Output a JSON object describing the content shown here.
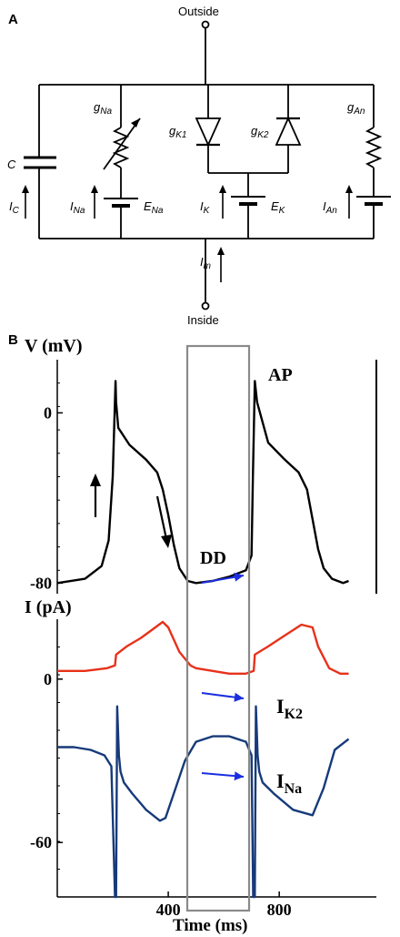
{
  "panel_a": {
    "label": "A",
    "outside_label": "Outside",
    "inside_label": "Inside",
    "capacitor": {
      "name": "C",
      "current": "I",
      "current_sub": "C"
    },
    "sodium": {
      "conductance": "g",
      "conductance_sub": "Na",
      "current": "I",
      "current_sub": "Na",
      "reversal": "E",
      "reversal_sub": "Na"
    },
    "potassium": {
      "g1": "g",
      "g1_sub": "K1",
      "g2": "g",
      "g2_sub": "K2",
      "current": "I",
      "current_sub": "K",
      "reversal": "E",
      "reversal_sub": "K"
    },
    "anion": {
      "conductance": "g",
      "conductance_sub": "An",
      "current": "I",
      "current_sub": "An"
    },
    "membrane": {
      "current": "I",
      "current_sub": "m"
    }
  },
  "panel_b": {
    "label": "B",
    "voltage_axis_label": "V (mV)",
    "current_axis_label": "I (pA)",
    "x_axis_label": "Time (ms)",
    "annotations": {
      "ap": "AP",
      "dd": "DD"
    },
    "series_labels": {
      "ik2": "I",
      "ik2_sub": "K2",
      "ina": "I",
      "ina_sub": "Na"
    }
  },
  "chart_data": [
    {
      "type": "line",
      "title": "",
      "ylabel": "V (mV)",
      "xlabel": "",
      "xlim": [
        0,
        1150
      ],
      "ylim": [
        -85,
        25
      ],
      "yticks": [
        0,
        -80
      ],
      "annotations": [
        "AP",
        "DD"
      ],
      "series": [
        {
          "name": "AP",
          "color": "#000000",
          "x": [
            0,
            100,
            160,
            185,
            200,
            210,
            212,
            220,
            260,
            320,
            360,
            380,
            400,
            420,
            440,
            470,
            500,
            560,
            620,
            680,
            700,
            705,
            712,
            720,
            760,
            820,
            870,
            900,
            920,
            940,
            960,
            990,
            1030,
            1050
          ],
          "y": [
            -80,
            -78,
            -72,
            -60,
            -30,
            15,
            5,
            -7,
            -15,
            -22,
            -28,
            -36,
            -48,
            -62,
            -73,
            -79,
            -80,
            -79,
            -77,
            -74,
            -67,
            -30,
            15,
            5,
            -14,
            -22,
            -28,
            -36,
            -50,
            -64,
            -73,
            -78,
            -80,
            -79
          ]
        }
      ]
    },
    {
      "type": "line",
      "title": "",
      "ylabel": "I (pA)",
      "xlabel": "Time (ms)",
      "xlim": [
        0,
        1150
      ],
      "ylim": [
        -80,
        22
      ],
      "yticks": [
        0,
        -60
      ],
      "xticks": [
        400,
        800
      ],
      "series": [
        {
          "name": "IK2",
          "color": "#e8311a",
          "x": [
            0,
            100,
            180,
            208,
            212,
            250,
            300,
            340,
            380,
            400,
            440,
            480,
            500,
            560,
            620,
            680,
            708,
            712,
            760,
            820,
            880,
            920,
            940,
            980,
            1020,
            1050
          ],
          "y": [
            3,
            3,
            4,
            5,
            9,
            12,
            15,
            18,
            21,
            19,
            10,
            5,
            4,
            3,
            2,
            2,
            3,
            9,
            12,
            16,
            20,
            19,
            12,
            4,
            2,
            2
          ]
        },
        {
          "name": "INa",
          "color": "#163a7a",
          "x": [
            0,
            60,
            120,
            170,
            195,
            208,
            212,
            216,
            222,
            228,
            240,
            270,
            320,
            370,
            390,
            420,
            460,
            500,
            560,
            620,
            680,
            700,
            706,
            712,
            716,
            722,
            728,
            740,
            780,
            850,
            920,
            960,
            1000,
            1050
          ],
          "y": [
            -25,
            -25,
            -26,
            -28,
            -32,
            -80,
            -80,
            -10,
            -28,
            -34,
            -38,
            -42,
            -48,
            -52,
            -51,
            -42,
            -30,
            -23,
            -21,
            -21,
            -23,
            -28,
            -80,
            -80,
            -10,
            -28,
            -34,
            -38,
            -42,
            -48,
            -50,
            -40,
            -26,
            -22
          ]
        }
      ]
    }
  ]
}
